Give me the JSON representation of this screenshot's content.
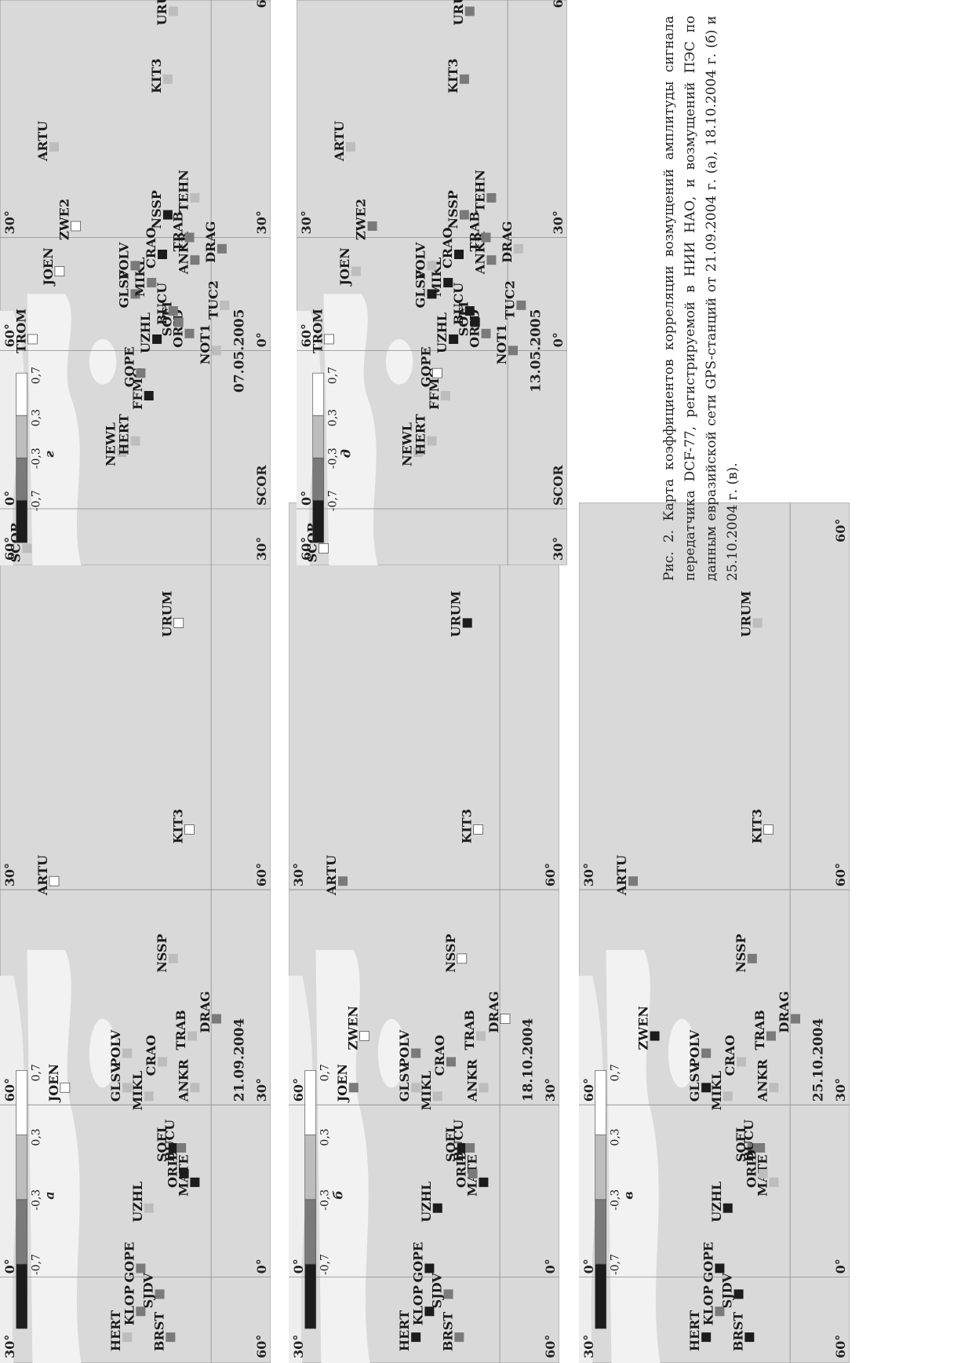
{
  "figure": {
    "caption": "Рис. 2. Карта коэффициентов корреляции возмущений амплитуды сигнала передатчика DCF-77, регистрируемой в НИИ НАО, и возмущений ПЭС по данным евразийской сети GPS-станций от 21.09.2004 г. (а), 18.10.2004 г. (б) и 25.10.2004 г. (в)."
  },
  "legend": {
    "ticks": [
      "-0,7",
      "-0,3",
      "0,3",
      "0,7"
    ],
    "colors": [
      "#1c1c1c",
      "#7a7a7a",
      "#bdbdbd",
      "#ffffff"
    ]
  },
  "panels": [
    {
      "id": "a",
      "date": "21.09.2004",
      "panel_letter": "а",
      "grid": {
        "lat_top": "60°",
        "lat_bottom": "30°",
        "lon": [
          "0°",
          "30°",
          "60°",
          "60°"
        ],
        "lat_low": [
          "0°",
          "60°",
          "30°"
        ]
      },
      "stations": [
        {
          "name": "HERT",
          "level": 3
        },
        {
          "name": "KLOP",
          "level": 2
        },
        {
          "name": "GOPE",
          "level": 2
        },
        {
          "name": "SJDV",
          "level": 2
        },
        {
          "name": "BRST",
          "level": 2
        },
        {
          "name": "UZHL",
          "level": 3
        },
        {
          "name": "SOFI",
          "level": 1
        },
        {
          "name": "MATE",
          "level": 1
        },
        {
          "name": "BUCU",
          "level": 2
        },
        {
          "name": "ORID",
          "level": 1
        },
        {
          "name": "GLSV",
          "level": 3
        },
        {
          "name": "MIKL",
          "level": 3
        },
        {
          "name": "POLV",
          "level": 3
        },
        {
          "name": "CRAO",
          "level": 3
        },
        {
          "name": "ANKR",
          "level": 3
        },
        {
          "name": "TRAB",
          "level": 3
        },
        {
          "name": "DRAG",
          "level": 2
        },
        {
          "name": "NSSP",
          "level": 3
        },
        {
          "name": "JOEN",
          "level": 4
        },
        {
          "name": "ARTU",
          "level": 4
        },
        {
          "name": "KIT3",
          "level": 4
        },
        {
          "name": "URUM",
          "level": 4
        }
      ]
    },
    {
      "id": "b",
      "date": "18.10.2004",
      "panel_letter": "б",
      "grid": {
        "lat_top": "60°",
        "lat_bottom": "30°",
        "lon": [
          "0°",
          "30°",
          "60°",
          "60°"
        ],
        "lat_low": [
          "0°",
          "60°",
          "30°"
        ]
      },
      "stations": [
        {
          "name": "HERT",
          "level": 1
        },
        {
          "name": "KLOP",
          "level": 1
        },
        {
          "name": "GOPE",
          "level": 1
        },
        {
          "name": "SJDV",
          "level": 2
        },
        {
          "name": "BRST",
          "level": 2
        },
        {
          "name": "UZHL",
          "level": 1
        },
        {
          "name": "SOFI",
          "level": 1
        },
        {
          "name": "MATE",
          "level": 1
        },
        {
          "name": "BUCU",
          "level": 2
        },
        {
          "name": "ORID",
          "level": 2
        },
        {
          "name": "GLSV",
          "level": 3
        },
        {
          "name": "MIKL",
          "level": 3
        },
        {
          "name": "POLV",
          "level": 2
        },
        {
          "name": "CRAO",
          "level": 2
        },
        {
          "name": "ANKR",
          "level": 3
        },
        {
          "name": "TRAB",
          "level": 3
        },
        {
          "name": "DRAG",
          "level": 4
        },
        {
          "name": "NSSP",
          "level": 4
        },
        {
          "name": "JOEN",
          "level": 2
        },
        {
          "name": "ZWEN",
          "level": 4
        },
        {
          "name": "ARTU",
          "level": 2
        },
        {
          "name": "KIT3",
          "level": 4
        },
        {
          "name": "URUM",
          "level": 1
        }
      ]
    },
    {
      "id": "c",
      "date": "25.10.2004",
      "panel_letter": "в",
      "grid": {
        "lat_top": "60°",
        "lat_bottom": "30°",
        "lon": [
          "0°",
          "30°",
          "60°",
          "60°"
        ],
        "lat_low": [
          "0°",
          "60°",
          "30°"
        ]
      },
      "stations": [
        {
          "name": "HERT",
          "level": 1
        },
        {
          "name": "KLOP",
          "level": 2
        },
        {
          "name": "GOPE",
          "level": 1
        },
        {
          "name": "SJDV",
          "level": 1
        },
        {
          "name": "BRST",
          "level": 1
        },
        {
          "name": "UZHL",
          "level": 1
        },
        {
          "name": "SOFI",
          "level": 2
        },
        {
          "name": "MATE",
          "level": 3
        },
        {
          "name": "BUCU",
          "level": 2
        },
        {
          "name": "ORID",
          "level": 3
        },
        {
          "name": "GLSV",
          "level": 1
        },
        {
          "name": "MIKL",
          "level": 3
        },
        {
          "name": "POLV",
          "level": 2
        },
        {
          "name": "CRAO",
          "level": 3
        },
        {
          "name": "ANKR",
          "level": 3
        },
        {
          "name": "TRAB",
          "level": 2
        },
        {
          "name": "DRAG",
          "level": 2
        },
        {
          "name": "NSSP",
          "level": 2
        },
        {
          "name": "ZWEN",
          "level": 1
        },
        {
          "name": "ARTU",
          "level": 2
        },
        {
          "name": "KIT3",
          "level": 4
        },
        {
          "name": "URUM",
          "level": 3
        }
      ]
    },
    {
      "id": "d",
      "date": "07.05.2005",
      "panel_letter": "г",
      "grid": {
        "lat_top": "30°",
        "lat_bottom": "60°",
        "lon": [
          "SCOR",
          "0°",
          "30°",
          "60°"
        ],
        "lat_low": [
          "0°",
          "60°",
          "30°"
        ]
      },
      "stations": [
        {
          "name": "SCOR",
          "level": 3
        },
        {
          "name": "NEWL",
          "level": 3
        },
        {
          "name": "HERT",
          "level": 3
        },
        {
          "name": "FFMG",
          "level": 1
        },
        {
          "name": "GOPE",
          "level": 2
        },
        {
          "name": "UZHL",
          "level": 1
        },
        {
          "name": "ORID",
          "level": 2
        },
        {
          "name": "SOFI",
          "level": 2
        },
        {
          "name": "NOT1",
          "level": 3
        },
        {
          "name": "BUCU",
          "level": 2
        },
        {
          "name": "GLSV",
          "level": 2
        },
        {
          "name": "MIKL",
          "level": 2
        },
        {
          "name": "POLV",
          "level": 2
        },
        {
          "name": "CRAO",
          "level": 1
        },
        {
          "name": "ANKR",
          "level": 2
        },
        {
          "name": "TRAB",
          "level": 2
        },
        {
          "name": "NSSP",
          "level": 1
        },
        {
          "name": "TEHN",
          "level": 3
        },
        {
          "name": "DRAG",
          "level": 2
        },
        {
          "name": "TUC2",
          "level": 3
        },
        {
          "name": "TROM",
          "level": 4
        },
        {
          "name": "JOEN",
          "level": 4
        },
        {
          "name": "ZWE2",
          "level": 4
        },
        {
          "name": "ARTU",
          "level": 3
        },
        {
          "name": "KIT3",
          "level": 3
        },
        {
          "name": "URUM",
          "level": 3
        }
      ]
    },
    {
      "id": "e",
      "date": "13.05.2005",
      "panel_letter": "д",
      "grid": {
        "lat_top": "30°",
        "lat_bottom": "60°",
        "lon": [
          "SCOR",
          "0°",
          "30°",
          "60°"
        ],
        "lat_low": [
          "0°",
          "60°",
          "30°"
        ]
      },
      "stations": [
        {
          "name": "SCOR",
          "level": 4
        },
        {
          "name": "NEWL",
          "level": 3
        },
        {
          "name": "HERT",
          "level": 3
        },
        {
          "name": "FFMG",
          "level": 3
        },
        {
          "name": "GOPE",
          "level": 4
        },
        {
          "name": "UZHL",
          "level": 1
        },
        {
          "name": "ORID",
          "level": 2
        },
        {
          "name": "SOFI",
          "level": 1
        },
        {
          "name": "NOT1",
          "level": 2
        },
        {
          "name": "BUCU",
          "level": 1
        },
        {
          "name": "GLSV",
          "level": 1
        },
        {
          "name": "MIKL",
          "level": 1
        },
        {
          "name": "POLV",
          "level": 3
        },
        {
          "name": "CRAO",
          "level": 1
        },
        {
          "name": "ANKR",
          "level": 2
        },
        {
          "name": "TRAB",
          "level": 2
        },
        {
          "name": "NSSP",
          "level": 2
        },
        {
          "name": "TEHN",
          "level": 2
        },
        {
          "name": "DRAG",
          "level": 3
        },
        {
          "name": "TUC2",
          "level": 2
        },
        {
          "name": "TROM",
          "level": 4
        },
        {
          "name": "JOEN",
          "level": 3
        },
        {
          "name": "ZWE2",
          "level": 2
        },
        {
          "name": "ARTU",
          "level": 3
        },
        {
          "name": "KIT3",
          "level": 2
        },
        {
          "name": "URUM",
          "level": 2
        }
      ]
    }
  ]
}
